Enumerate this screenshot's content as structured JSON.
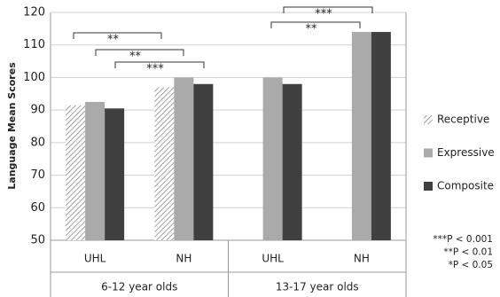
{
  "chart_data": {
    "type": "bar",
    "ylabel": "Language Mean Scores",
    "categories": [
      "UHL",
      "NH",
      "UHL",
      "NH"
    ],
    "groups": [
      "6-12 year olds",
      "13-17 year olds"
    ],
    "series": [
      {
        "name": "Receptive",
        "color": "#8a8a8a",
        "pattern": "hatch",
        "values": [
          91.5,
          97,
          null,
          null
        ]
      },
      {
        "name": "Expressive",
        "color": "#aaaaaa",
        "values": [
          92.5,
          100,
          100,
          114
        ]
      },
      {
        "name": "Composite",
        "color": "#404040",
        "values": [
          90.5,
          98,
          98,
          114
        ]
      }
    ],
    "ylim": [
      50,
      120
    ],
    "yticks": [
      50,
      60,
      70,
      80,
      90,
      100,
      110,
      120
    ],
    "grid": true,
    "annotations": [
      "**",
      "**",
      "***",
      "**",
      "***"
    ],
    "notes": [
      "***P < 0.001",
      "**P < 0.01",
      "*P < 0.05"
    ],
    "legend": "right"
  }
}
